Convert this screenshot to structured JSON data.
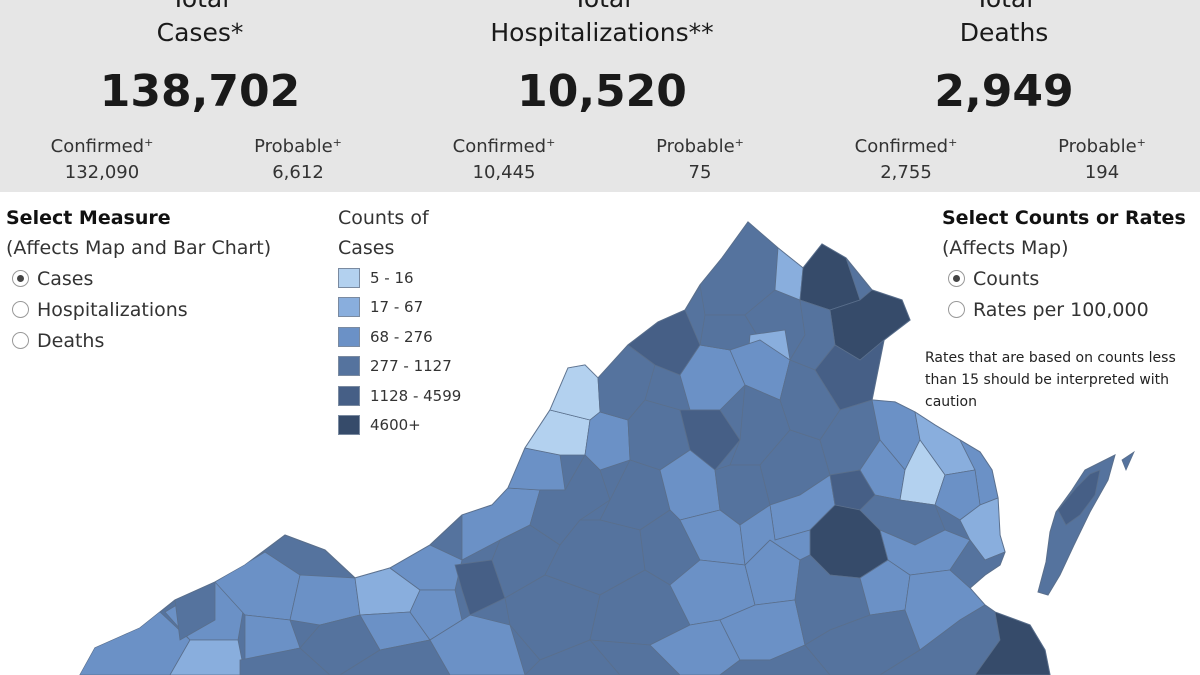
{
  "summary": {
    "cases": {
      "title_line1": "Total",
      "title_line2": "Cases*",
      "total": "138,702",
      "confirmed_label": "Confirmed",
      "probable_label": "Probable",
      "confirmed": "132,090",
      "probable": "6,612"
    },
    "hospitalizations": {
      "title_line1": "Total",
      "title_line2": "Hospitalizations**",
      "total": "10,520",
      "confirmed_label": "Confirmed",
      "probable_label": "Probable",
      "confirmed": "10,445",
      "probable": "75"
    },
    "deaths": {
      "title_line1": "Total",
      "title_line2": "Deaths",
      "total": "2,949",
      "confirmed_label": "Confirmed",
      "probable_label": "Probable",
      "confirmed": "2,755",
      "probable": "194"
    },
    "dagger": "+"
  },
  "measure": {
    "heading": "Select Measure",
    "subheading": "(Affects Map and Bar Chart)",
    "options": [
      {
        "label": "Cases",
        "selected": true
      },
      {
        "label": "Hospitalizations",
        "selected": false
      },
      {
        "label": "Deaths",
        "selected": false
      }
    ]
  },
  "legend": {
    "title_line1": "Counts of",
    "title_line2": "Cases",
    "bins": [
      {
        "label": "5 - 16",
        "color": "#b3d1ef"
      },
      {
        "label": "17 - 67",
        "color": "#89aedd"
      },
      {
        "label": "68 - 276",
        "color": "#6b91c6"
      },
      {
        "label": "277 - 1127",
        "color": "#55739e"
      },
      {
        "label": "1128 - 4599",
        "color": "#465f86"
      },
      {
        "label": "4600+",
        "color": "#364b6a"
      }
    ]
  },
  "scale": {
    "heading": "Select Counts or Rates",
    "subheading": "(Affects Map)",
    "options": [
      {
        "label": "Counts",
        "selected": true
      },
      {
        "label": "Rates per 100,000",
        "selected": false
      }
    ]
  },
  "note": "Rates that are based on counts less than 15 should be interpreted with caution",
  "map": {
    "region": "Virginia",
    "border_color": "#5a6f8c"
  }
}
